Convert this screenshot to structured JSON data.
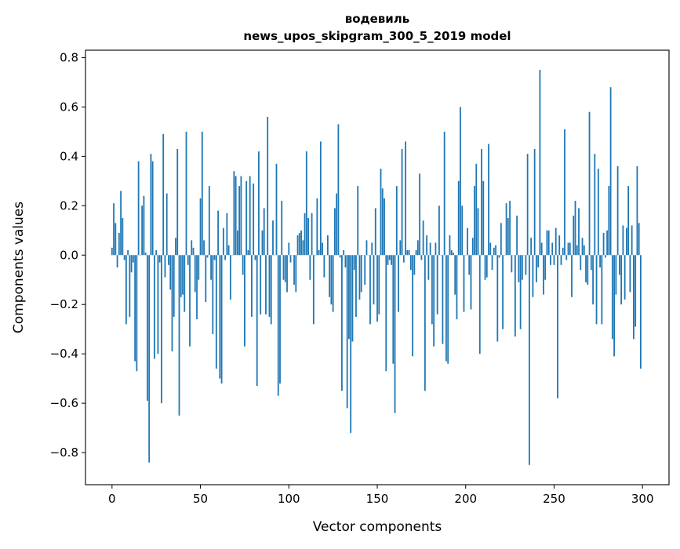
{
  "chart_data": {
    "type": "bar",
    "title": "водевиль",
    "subtitle": "news_upos_skipgram_300_5_2019 model",
    "xlabel": "Vector components",
    "ylabel": "Components values",
    "xlim": [
      -15,
      315
    ],
    "ylim": [
      -0.93,
      0.83
    ],
    "xticks": [
      0,
      50,
      100,
      150,
      200,
      250,
      300
    ],
    "yticks": [
      -0.8,
      -0.6,
      -0.4,
      -0.2,
      0.0,
      0.2,
      0.4,
      0.6,
      0.8
    ],
    "ytick_labels": [
      "−0.8",
      "−0.6",
      "−0.4",
      "−0.2",
      "0.0",
      "0.2",
      "0.4",
      "0.6",
      "0.8"
    ],
    "grid": false,
    "bar_color": "#1f77b4",
    "values": [
      0.03,
      0.21,
      0.13,
      -0.05,
      0.09,
      0.26,
      0.15,
      -0.02,
      -0.28,
      0.02,
      -0.25,
      -0.07,
      -0.03,
      -0.43,
      -0.47,
      0.38,
      0.0,
      0.2,
      0.24,
      0.01,
      -0.59,
      -0.84,
      0.41,
      0.38,
      -0.42,
      0.02,
      -0.4,
      -0.03,
      -0.6,
      0.49,
      -0.09,
      0.25,
      -0.04,
      -0.14,
      -0.39,
      -0.25,
      0.07,
      0.43,
      -0.65,
      -0.17,
      -0.16,
      -0.23,
      0.5,
      -0.04,
      -0.37,
      0.06,
      0.03,
      -0.15,
      -0.26,
      -0.1,
      0.23,
      0.5,
      0.06,
      -0.19,
      -0.01,
      0.28,
      -0.1,
      -0.32,
      -0.02,
      -0.46,
      0.18,
      -0.5,
      -0.52,
      0.11,
      -0.02,
      0.17,
      0.04,
      -0.18,
      0.0,
      0.34,
      0.32,
      0.1,
      0.28,
      0.32,
      -0.08,
      -0.37,
      0.3,
      0.02,
      0.32,
      -0.25,
      0.29,
      -0.02,
      -0.53,
      0.42,
      -0.24,
      0.1,
      0.19,
      -0.24,
      0.56,
      -0.25,
      -0.28,
      0.14,
      0.0,
      0.37,
      -0.57,
      -0.52,
      0.22,
      -0.1,
      -0.11,
      -0.15,
      0.05,
      -0.03,
      0.0,
      -0.12,
      -0.15,
      0.08,
      0.09,
      0.1,
      0.06,
      0.17,
      0.42,
      0.15,
      -0.1,
      0.17,
      -0.28,
      0.0,
      0.23,
      0.02,
      0.46,
      0.05,
      -0.09,
      0.0,
      0.08,
      -0.17,
      -0.2,
      -0.23,
      0.19,
      0.25,
      0.53,
      -0.01,
      -0.55,
      0.02,
      -0.05,
      -0.62,
      -0.34,
      -0.72,
      -0.35,
      -0.06,
      -0.25,
      0.28,
      -0.18,
      -0.15,
      0.0,
      -0.12,
      0.06,
      0.0,
      -0.28,
      0.05,
      -0.2,
      0.19,
      -0.27,
      -0.24,
      0.35,
      0.27,
      0.23,
      -0.47,
      -0.04,
      -0.02,
      -0.04,
      -0.44,
      -0.64,
      0.28,
      -0.23,
      0.06,
      0.43,
      -0.03,
      0.46,
      0.02,
      0.02,
      -0.06,
      -0.41,
      -0.08,
      0.02,
      0.06,
      0.33,
      -0.02,
      0.14,
      -0.55,
      0.08,
      -0.1,
      0.05,
      -0.28,
      -0.37,
      0.05,
      -0.24,
      0.2,
      0.0,
      -0.36,
      0.5,
      -0.43,
      -0.44,
      0.08,
      0.02,
      0.01,
      -0.16,
      -0.26,
      0.3,
      0.6,
      0.2,
      -0.23,
      0.0,
      0.11,
      -0.08,
      -0.22,
      0.07,
      0.28,
      0.37,
      0.19,
      -0.4,
      0.43,
      0.3,
      -0.1,
      -0.09,
      0.45,
      0.05,
      -0.06,
      0.03,
      0.04,
      -0.35,
      -0.01,
      0.13,
      -0.3,
      0.0,
      0.21,
      0.15,
      0.22,
      -0.07,
      0.0,
      -0.33,
      0.16,
      -0.11,
      -0.3,
      -0.1,
      0.0,
      -0.08,
      0.41,
      -0.85,
      0.07,
      -0.17,
      0.43,
      -0.11,
      -0.05,
      0.75,
      0.05,
      -0.16,
      -0.1,
      0.1,
      0.1,
      -0.04,
      0.05,
      -0.04,
      0.11,
      -0.58,
      0.08,
      -0.04,
      0.03,
      0.51,
      -0.02,
      0.05,
      0.05,
      -0.17,
      0.16,
      0.22,
      0.04,
      0.19,
      -0.06,
      0.07,
      0.04,
      -0.11,
      -0.12,
      0.58,
      -0.06,
      -0.2,
      0.41,
      -0.28,
      0.35,
      -0.05,
      -0.28,
      0.09,
      -0.01,
      0.1,
      0.28,
      0.68,
      -0.34,
      -0.41,
      -0.16,
      0.36,
      -0.08,
      -0.2,
      0.12,
      -0.18,
      0.11,
      0.28,
      -0.15,
      0.12,
      -0.34,
      -0.29,
      0.36,
      0.13,
      -0.46
    ]
  }
}
